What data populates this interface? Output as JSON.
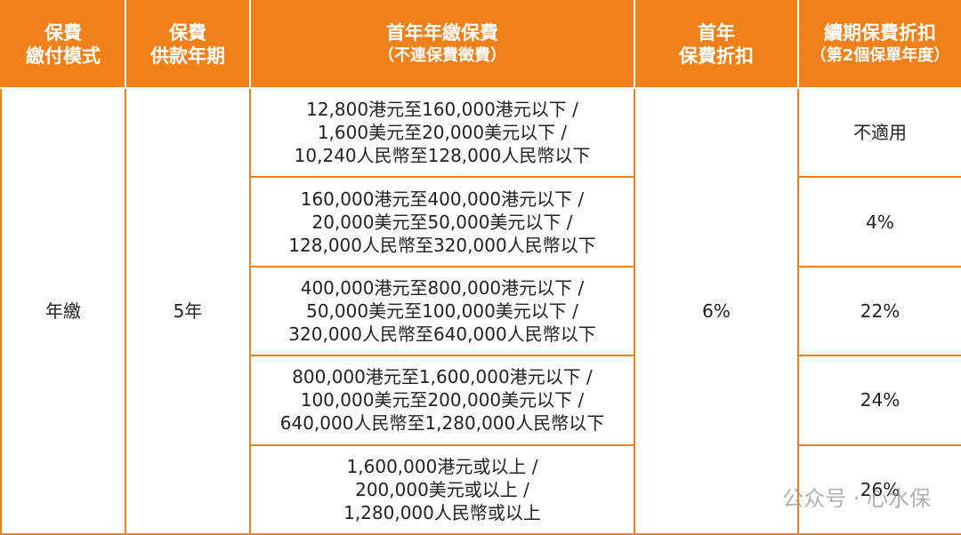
{
  "table": {
    "header": [
      [
        "保費",
        "繳付模式"
      ],
      [
        "保費",
        "供款年期"
      ],
      [
        "首年年繳保費",
        "（不連保費徵費）"
      ],
      [
        "首年",
        "保費折扣"
      ],
      [
        "續期保費折扣",
        "（第2個保單年度）"
      ]
    ],
    "payment_mode": "年繳",
    "term": "5年",
    "first_year_discount": "6%",
    "tiers": [
      {
        "premium": [
          "12,800港元至160,000港元以下 /",
          "1,600美元至20,000美元以下 /",
          "10,240人民幣至128,000人民幣以下"
        ],
        "renewal_discount": "不適用"
      },
      {
        "premium": [
          "160,000港元至400,000港元以下 /",
          "20,000美元至50,000美元以下 /",
          "128,000人民幣至320,000人民幣以下"
        ],
        "renewal_discount": "4%"
      },
      {
        "premium": [
          "400,000港元至800,000港元以下 /",
          "50,000美元至100,000美元以下 /",
          "320,000人民幣至640,000人民幣以下"
        ],
        "renewal_discount": "22%"
      },
      {
        "premium": [
          "800,000港元至1,600,000港元以下 /",
          "100,000美元至200,000美元以下 /",
          "640,000人民幣至1,280,000人民幣以下"
        ],
        "renewal_discount": "24%"
      },
      {
        "premium": [
          "1,600,000港元或以上 /",
          "200,000美元或以上 /",
          "1,280,000人民幣或以上"
        ],
        "renewal_discount": "26%"
      }
    ]
  },
  "watermark": "公众号 · 心水保"
}
